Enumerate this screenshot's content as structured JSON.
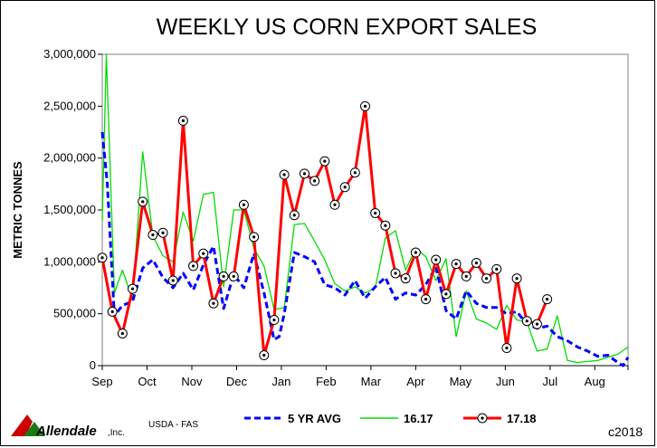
{
  "chart_data": {
    "type": "line",
    "title": "WEEKLY US CORN EXPORT SALES",
    "ylabel": "METRIC TONNES",
    "xlabel": "",
    "ylim": [
      0,
      3000000
    ],
    "yticks": [
      0,
      500000,
      1000000,
      1500000,
      2000000,
      2500000,
      3000000
    ],
    "ytick_labels": [
      "0",
      "500,000",
      "1,000,000",
      "1,500,000",
      "2,000,000",
      "2,500,000",
      "3,000,000"
    ],
    "xlim": [
      0,
      52
    ],
    "x_month_positions": [
      0,
      4.43,
      8.86,
      13.29,
      17.71,
      22.14,
      26.57,
      31,
      35.43,
      39.86,
      44.29,
      48.71
    ],
    "x_month_labels": [
      "Sep",
      "Oct",
      "Nov",
      "Dec",
      "Jan",
      "Feb",
      "Mar",
      "Apr",
      "May",
      "Jun",
      "Jul",
      "Aug"
    ],
    "grid": false,
    "legend_position": "bottom",
    "series": [
      {
        "name": "5 YR AVG",
        "color": "#0000ff",
        "style": "dashed",
        "x": [
          0,
          0.5,
          1.2,
          2,
          3,
          4,
          5,
          6,
          7,
          8,
          9,
          10,
          11,
          12,
          13,
          14,
          15,
          16,
          17,
          17.5,
          18,
          19,
          20,
          21,
          22,
          23,
          24,
          25,
          26,
          27,
          28,
          29,
          30,
          31,
          32,
          33,
          34,
          35,
          36,
          37,
          38,
          39,
          40,
          41,
          42,
          43,
          44,
          45,
          46,
          47,
          48,
          49,
          50,
          51,
          51.5,
          52
        ],
        "values": [
          2250000,
          1750000,
          480000,
          580000,
          620000,
          940000,
          1020000,
          850000,
          750000,
          890000,
          730000,
          970000,
          1150000,
          550000,
          880000,
          750000,
          1080000,
          700000,
          250000,
          280000,
          500000,
          1090000,
          1050000,
          1000000,
          780000,
          750000,
          680000,
          820000,
          650000,
          760000,
          850000,
          640000,
          700000,
          680000,
          780000,
          950000,
          530000,
          450000,
          720000,
          600000,
          560000,
          560000,
          500000,
          520000,
          400000,
          360000,
          380000,
          280000,
          240000,
          180000,
          140000,
          90000,
          100000,
          30000,
          0,
          80000
        ]
      },
      {
        "name": "16.17",
        "color": "#00dd00",
        "style": "solid",
        "x": [
          0,
          0.4,
          1.2,
          2,
          3,
          4,
          5,
          6,
          7,
          8,
          9,
          10,
          11,
          12,
          13,
          14,
          15,
          16,
          17,
          18,
          19,
          20,
          21,
          22,
          23,
          24,
          25,
          26,
          27,
          28,
          29,
          30,
          31,
          32,
          33,
          34,
          35,
          36,
          37,
          38,
          39,
          40,
          41,
          42,
          43,
          44,
          45,
          46,
          47,
          48,
          49,
          50,
          51,
          52
        ],
        "values": [
          1400000,
          3000000,
          700000,
          920000,
          640000,
          2060000,
          1250000,
          1060000,
          1000000,
          1480000,
          1200000,
          1650000,
          1670000,
          760000,
          1500000,
          1500000,
          1130000,
          960000,
          540000,
          560000,
          1360000,
          1370000,
          1200000,
          1020000,
          790000,
          720000,
          760000,
          700000,
          750000,
          1230000,
          1300000,
          920000,
          1130000,
          1050000,
          820000,
          1030000,
          280000,
          720000,
          450000,
          410000,
          350000,
          580000,
          440000,
          420000,
          140000,
          160000,
          480000,
          50000,
          30000,
          40000,
          50000,
          80000,
          110000,
          180000
        ]
      },
      {
        "name": "17.18",
        "color": "#ff0000",
        "style": "solid-marker",
        "x": [
          0,
          1,
          2,
          3,
          4,
          5,
          6,
          7,
          8,
          9,
          10,
          11,
          12,
          13,
          14,
          15,
          16,
          17,
          18,
          19,
          20,
          21,
          22,
          23,
          24,
          25,
          26,
          27,
          28,
          29,
          30,
          31,
          32,
          33,
          34,
          35,
          36,
          37,
          38,
          39,
          40,
          41,
          42,
          43,
          44
        ],
        "values": [
          1040000,
          520000,
          310000,
          740000,
          1580000,
          1260000,
          1280000,
          820000,
          2360000,
          960000,
          1080000,
          600000,
          860000,
          860000,
          1550000,
          1240000,
          100000,
          440000,
          1840000,
          1450000,
          1850000,
          1780000,
          1970000,
          1550000,
          1720000,
          1860000,
          2500000,
          1470000,
          1350000,
          890000,
          840000,
          1090000,
          640000,
          1020000,
          690000,
          980000,
          860000,
          990000,
          840000,
          930000,
          170000,
          840000,
          430000,
          400000,
          640000
        ]
      }
    ]
  },
  "footer": {
    "logo_name": "Allendale",
    "logo_suffix": ",Inc.",
    "source": "USDA - FAS",
    "copyright": "c2018"
  }
}
